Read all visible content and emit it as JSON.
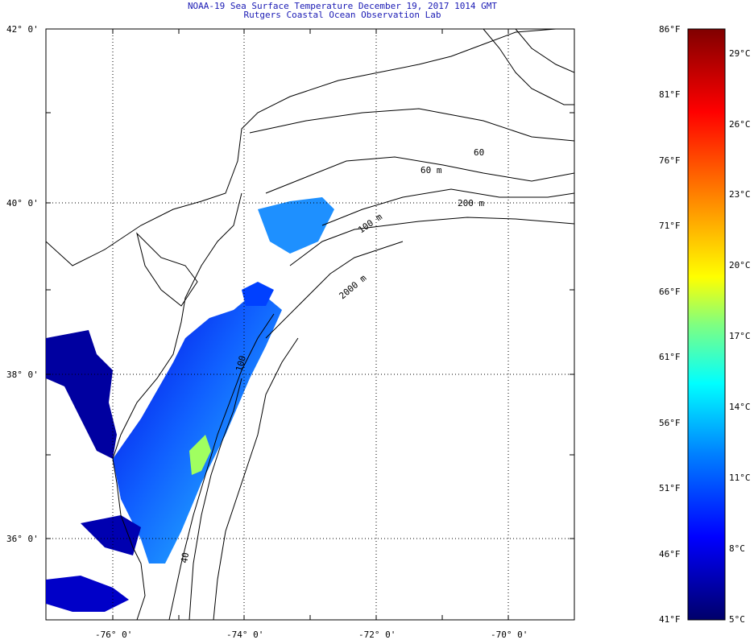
{
  "title": "NOAA-19 Sea Surface Temperature December 19, 2017 1014 GMT",
  "subtitle": "Rutgers Coastal Ocean Observation Lab",
  "lat_labels": [
    "42° 0'",
    "40° 0'",
    "38° 0'",
    "36° 0'"
  ],
  "lon_labels": [
    "-76° 0'",
    "-74° 0'",
    "-72° 0'",
    "-70° 0'"
  ],
  "contour_labels": [
    "60",
    "60 m",
    "200 m",
    "100 m",
    "2000 m",
    "40",
    "100"
  ],
  "colorbar": {
    "f_labels": [
      "86°F",
      "81°F",
      "76°F",
      "71°F",
      "66°F",
      "61°F",
      "56°F",
      "51°F",
      "46°F",
      "41°F"
    ],
    "c_labels": [
      "29°C",
      "26°C",
      "23°C",
      "20°C",
      "17°C",
      "14°C",
      "11°C",
      "8°C",
      "5°C"
    ],
    "colors": [
      "#00006a",
      "#0000ff",
      "#0080ff",
      "#00ffff",
      "#80ff80",
      "#ffff00",
      "#ff8000",
      "#ff0000",
      "#800000"
    ]
  },
  "colors": {
    "title": "#1a1ab4",
    "land_outline": "#000000",
    "grid": "#000000"
  }
}
